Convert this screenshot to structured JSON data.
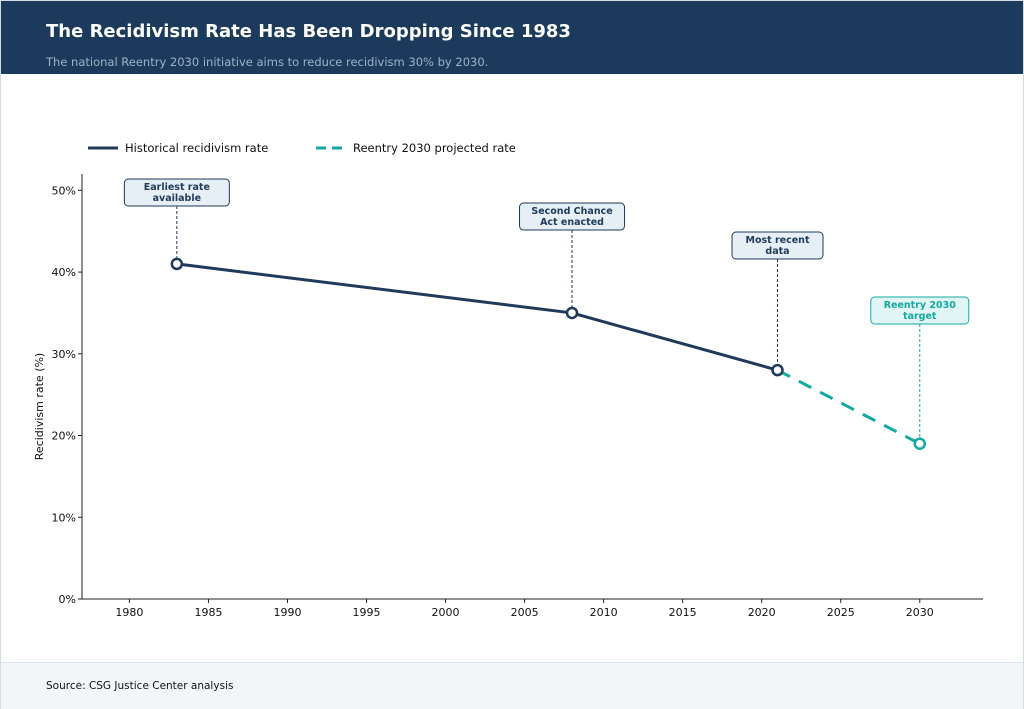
{
  "header": {
    "title": "The Recidivism Rate Has Been Dropping Since 1983",
    "subtitle": "The national Reentry 2030 initiative aims to reduce recidivism 30% by 2030."
  },
  "footer": {
    "source": "Source: CSG Justice Center analysis"
  },
  "chart_data": {
    "type": "line",
    "title": "",
    "xlabel": "",
    "ylabel": "Recidivism rate (%)",
    "xlim": [
      1977,
      2034
    ],
    "ylim": [
      0,
      52
    ],
    "xticks": [
      1980,
      1985,
      1990,
      1995,
      2000,
      2005,
      2010,
      2015,
      2020,
      2025,
      2030
    ],
    "yticks": [
      0,
      10,
      20,
      30,
      40,
      50
    ],
    "ytick_labels": [
      "0%",
      "10%",
      "20%",
      "30%",
      "40%",
      "50%"
    ],
    "grid": false,
    "legend_placement": "top-left",
    "series": [
      {
        "name": "Historical recidivism rate",
        "style": "solid",
        "color": "#1f3a5a",
        "x": [
          1983,
          2008,
          2021
        ],
        "y": [
          41,
          35,
          28
        ]
      },
      {
        "name": "Reentry 2030 projected rate",
        "style": "dashed",
        "color": "#14a9a0",
        "x": [
          2021,
          2030
        ],
        "y": [
          28,
          19
        ]
      }
    ],
    "annotations": [
      {
        "x": 1983,
        "y": 41,
        "lines": [
          "Earliest rate",
          "available"
        ],
        "color": "#1f3a5a",
        "fill": "#e6eef6"
      },
      {
        "x": 2008,
        "y": 35,
        "lines": [
          "Second Chance",
          "Act enacted"
        ],
        "color": "#1f3a5a",
        "fill": "#e6eef6"
      },
      {
        "x": 2021,
        "y": 28,
        "lines": [
          "Most recent",
          "data"
        ],
        "color": "#1f3a5a",
        "fill": "#e6eef6"
      },
      {
        "x": 2030,
        "y": 19,
        "lines": [
          "Reentry 2030",
          "target"
        ],
        "color": "#14a9a0",
        "fill": "#e0f5f4"
      }
    ]
  }
}
